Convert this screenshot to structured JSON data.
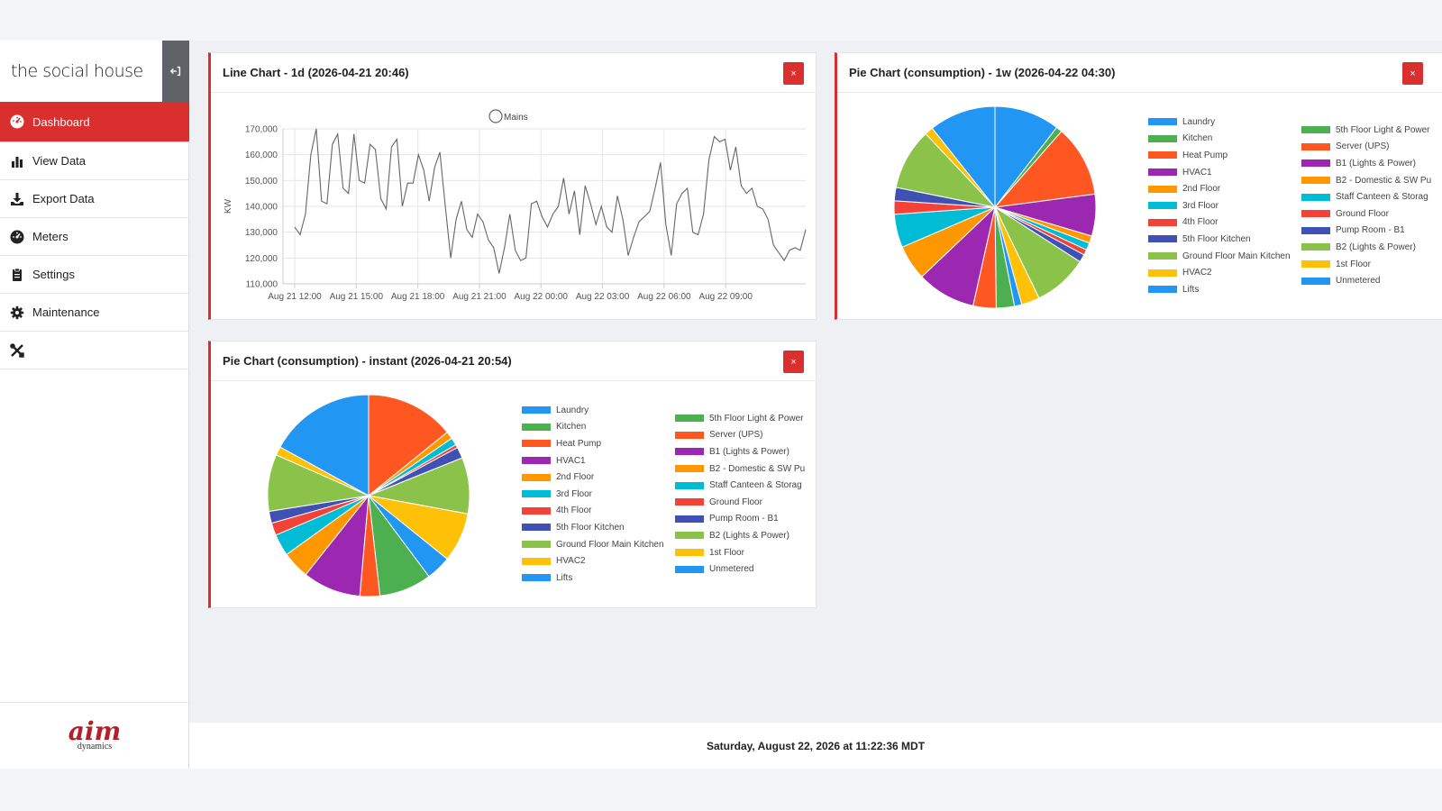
{
  "brand": {
    "name": "the social house",
    "collapse_icon": "sign-out-icon"
  },
  "nav": {
    "items": [
      {
        "label": "Dashboard",
        "icon": "dashboard-icon",
        "active": true
      },
      {
        "label": "View Data",
        "icon": "bar-chart-icon",
        "active": false
      },
      {
        "label": "Export Data",
        "icon": "download-icon",
        "active": false
      },
      {
        "label": "Meters",
        "icon": "meter-icon",
        "active": false
      },
      {
        "label": "Settings",
        "icon": "gear-icon",
        "active": false
      },
      {
        "label": "Maintenance",
        "icon": "tools-icon",
        "active": false
      }
    ]
  },
  "vendor": {
    "logo": "aim",
    "sub": "dynamics"
  },
  "colors": {
    "accent": "#d9302f",
    "line": "#666666"
  },
  "panels": {
    "line": {
      "title": "Line Chart - 1d (2026-04-21 20:46)",
      "close": "×"
    },
    "pie_week": {
      "title": "Pie Chart (consumption) - 1w (2026-04-22 04:30)",
      "close": "×"
    },
    "pie_instant": {
      "title": "Pie Chart (consumption) - instant (2026-04-21 20:54)",
      "close": "×"
    }
  },
  "footer": {
    "datetime": "Saturday, August 22, 2026 at 11:22:36 MDT"
  },
  "chart_data": [
    {
      "type": "line",
      "title": "Line Chart - 1d (2026-04-21 20:46)",
      "ylabel": "KW",
      "xlabel": "",
      "ylim": [
        110000,
        170000
      ],
      "yticks": [
        "110,000",
        "120,000",
        "130,000",
        "140,000",
        "150,000",
        "160,000",
        "170,000"
      ],
      "xticks": [
        "Aug 21 12:00",
        "Aug 21 15:00",
        "Aug 21 18:00",
        "Aug 21 21:00",
        "Aug 22 00:00",
        "Aug 22 03:00",
        "Aug 22 06:00",
        "Aug 22 09:00"
      ],
      "legend": [
        "Mains"
      ],
      "grid": true,
      "series": [
        {
          "name": "Mains",
          "values": [
            132000,
            129000,
            137000,
            160000,
            170000,
            142000,
            141000,
            164000,
            168000,
            147000,
            145000,
            168000,
            150000,
            149000,
            164000,
            162000,
            143000,
            139000,
            163000,
            166000,
            140000,
            149000,
            149000,
            160000,
            154000,
            142000,
            155000,
            161000,
            140000,
            120000,
            135000,
            142000,
            131000,
            128000,
            137000,
            134000,
            127000,
            124000,
            114000,
            124000,
            137000,
            123000,
            119000,
            120000,
            141000,
            142000,
            136000,
            132000,
            137000,
            140000,
            151000,
            137000,
            146000,
            129000,
            148000,
            141000,
            133000,
            140000,
            132000,
            130000,
            144000,
            135000,
            121000,
            128000,
            134000,
            136000,
            138000,
            147000,
            157000,
            133000,
            121000,
            141000,
            145000,
            147000,
            130000,
            129000,
            137000,
            158000,
            167000,
            165000,
            166000,
            154000,
            163000,
            148000,
            145000,
            147000,
            140000,
            139000,
            135000,
            125000,
            122000,
            119000,
            123000,
            124000,
            123000,
            131000
          ]
        }
      ]
    },
    {
      "type": "pie",
      "title": "Pie Chart (consumption) - 1w (2026-04-22 04:30)",
      "legend": [
        "Laundry",
        "Kitchen",
        "Heat Pump",
        "HVAC1",
        "2nd Floor",
        "3rd Floor",
        "4th Floor",
        "5th Floor Kitchen",
        "Ground Floor Main Kitchen",
        "HVAC2",
        "Lifts",
        "5th Floor Light & Power",
        "Server (UPS)",
        "B1 (Lights & Power)",
        "B2 - Domestic & SW Pu",
        "Staff Canteen & Storag",
        "Ground Floor",
        "Pump Room - B1",
        "B2 (Lights & Power)",
        "1st Floor",
        "Unmetered"
      ],
      "slices": [
        {
          "name": "Laundry",
          "value": 10.8,
          "color": "#2196f3"
        },
        {
          "name": "Kitchen",
          "value": 1.0,
          "color": "#4caf50"
        },
        {
          "name": "Heat Pump",
          "value": 11.8,
          "color": "#ff5722"
        },
        {
          "name": "HVAC1",
          "value": 6.9,
          "color": "#9c27b0"
        },
        {
          "name": "2nd Floor",
          "value": 1.2,
          "color": "#ff9800"
        },
        {
          "name": "3rd Floor",
          "value": 1.2,
          "color": "#00bcd4"
        },
        {
          "name": "4th Floor",
          "value": 0.9,
          "color": "#f44336"
        },
        {
          "name": "5th Floor Kitchen",
          "value": 1.3,
          "color": "#3f51b5"
        },
        {
          "name": "Ground Floor Main Kitchen",
          "value": 9.0,
          "color": "#8bc34a"
        },
        {
          "name": "HVAC2",
          "value": 3.0,
          "color": "#ffc107"
        },
        {
          "name": "Lifts",
          "value": 1.2,
          "color": "#2196f3"
        },
        {
          "name": "5th Floor Light & Power",
          "value": 3.0,
          "color": "#4caf50"
        },
        {
          "name": "Server (UPS)",
          "value": 3.8,
          "color": "#ff5722"
        },
        {
          "name": "B1 (Lights & Power)",
          "value": 9.7,
          "color": "#9c27b0"
        },
        {
          "name": "B2 - Domestic & SW Pu",
          "value": 5.8,
          "color": "#ff9800"
        },
        {
          "name": "Staff Canteen & Storag",
          "value": 5.5,
          "color": "#00bcd4"
        },
        {
          "name": "Ground Floor",
          "value": 2.2,
          "color": "#f44336"
        },
        {
          "name": "Pump Room - B1",
          "value": 2.2,
          "color": "#3f51b5"
        },
        {
          "name": "B2 (Lights & Power)",
          "value": 10.1,
          "color": "#8bc34a"
        },
        {
          "name": "1st Floor",
          "value": 1.4,
          "color": "#ffc107"
        },
        {
          "name": "Unmetered",
          "value": 11.0,
          "color": "#2196f3"
        }
      ]
    },
    {
      "type": "pie",
      "title": "Pie Chart (consumption) - instant (2026-04-21 20:54)",
      "legend": [
        "Laundry",
        "Kitchen",
        "Heat Pump",
        "HVAC1",
        "2nd Floor",
        "3rd Floor",
        "4th Floor",
        "5th Floor Kitchen",
        "Ground Floor Main Kitchen",
        "HVAC2",
        "Lifts",
        "5th Floor Light & Power",
        "Server (UPS)",
        "B1 (Lights & Power)",
        "B2 - Domestic & SW Pu",
        "Staff Canteen & Storag",
        "Ground Floor",
        "Pump Room - B1",
        "B2 (Lights & Power)",
        "1st Floor",
        "Unmetered"
      ],
      "slices": [
        {
          "name": "Heat Pump",
          "value": 14.2,
          "color": "#ff5722"
        },
        {
          "name": "2nd Floor",
          "value": 1.2,
          "color": "#ff9800"
        },
        {
          "name": "3rd Floor",
          "value": 1.2,
          "color": "#00bcd4"
        },
        {
          "name": "4th Floor",
          "value": 0.5,
          "color": "#f44336"
        },
        {
          "name": "5th Floor Kitchen",
          "value": 1.8,
          "color": "#3f51b5"
        },
        {
          "name": "Ground Floor Main Kitchen",
          "value": 9.0,
          "color": "#8bc34a"
        },
        {
          "name": "HVAC2",
          "value": 7.9,
          "color": "#ffc107"
        },
        {
          "name": "Lifts",
          "value": 4.0,
          "color": "#2196f3"
        },
        {
          "name": "5th Floor Light & Power",
          "value": 8.4,
          "color": "#4caf50"
        },
        {
          "name": "Server (UPS)",
          "value": 3.2,
          "color": "#ff5722"
        },
        {
          "name": "B1 (Lights & Power)",
          "value": 9.3,
          "color": "#9c27b0"
        },
        {
          "name": "B2 - Domestic & SW Pu",
          "value": 4.4,
          "color": "#ff9800"
        },
        {
          "name": "Staff Canteen & Storag",
          "value": 3.5,
          "color": "#00bcd4"
        },
        {
          "name": "Ground Floor",
          "value": 2.0,
          "color": "#f44336"
        },
        {
          "name": "Pump Room - B1",
          "value": 1.9,
          "color": "#3f51b5"
        },
        {
          "name": "B2 (Lights & Power)",
          "value": 9.1,
          "color": "#8bc34a"
        },
        {
          "name": "1st Floor",
          "value": 1.4,
          "color": "#ffc107"
        },
        {
          "name": "Unmetered",
          "value": 17.0,
          "color": "#2196f3"
        }
      ]
    }
  ]
}
